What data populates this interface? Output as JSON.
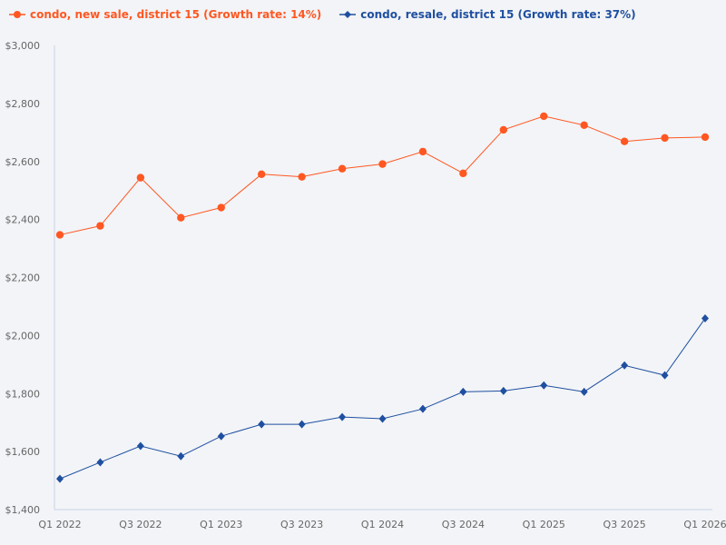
{
  "chart_data": {
    "type": "line",
    "categories": [
      "Q1 2022",
      "Q2 2022",
      "Q3 2022",
      "Q4 2022",
      "Q1 2023",
      "Q2 2023",
      "Q3 2023",
      "Q4 2023",
      "Q1 2024",
      "Q2 2024",
      "Q3 2024",
      "Q4 2024",
      "Q1 2025",
      "Q2 2025",
      "Q3 2025",
      "Q4 2025",
      "Q1 2026"
    ],
    "x_tick_labels": [
      "Q1 2022",
      "Q3 2022",
      "Q1 2023",
      "Q3 2023",
      "Q1 2024",
      "Q3 2024",
      "Q1 2025",
      "Q3 2025",
      "Q1 2026"
    ],
    "y_tick_labels": [
      "$1,400",
      "$1,600",
      "$1,800",
      "$2,000",
      "$2,200",
      "$2,400",
      "$2,600",
      "$2,800",
      "$3,000"
    ],
    "ylim": [
      1400,
      3000
    ],
    "grid": false,
    "legend_position": "top-left",
    "series": [
      {
        "name": "condo, new sale, district 15 (Growth rate: 14%)",
        "color": "#ff5722",
        "marker": "circle",
        "values": [
          2347,
          2378,
          2544,
          2406,
          2441,
          2556,
          2547,
          2575,
          2591,
          2634,
          2559,
          2709,
          2756,
          2725,
          2669,
          2681,
          2684
        ]
      },
      {
        "name": "condo, resale, district 15 (Growth rate: 37%)",
        "color": "#1f4fa0",
        "marker": "diamond",
        "values": [
          1506,
          1563,
          1619,
          1584,
          1653,
          1694,
          1694,
          1719,
          1713,
          1747,
          1806,
          1809,
          1828,
          1806,
          1897,
          1863,
          2059
        ]
      }
    ]
  }
}
